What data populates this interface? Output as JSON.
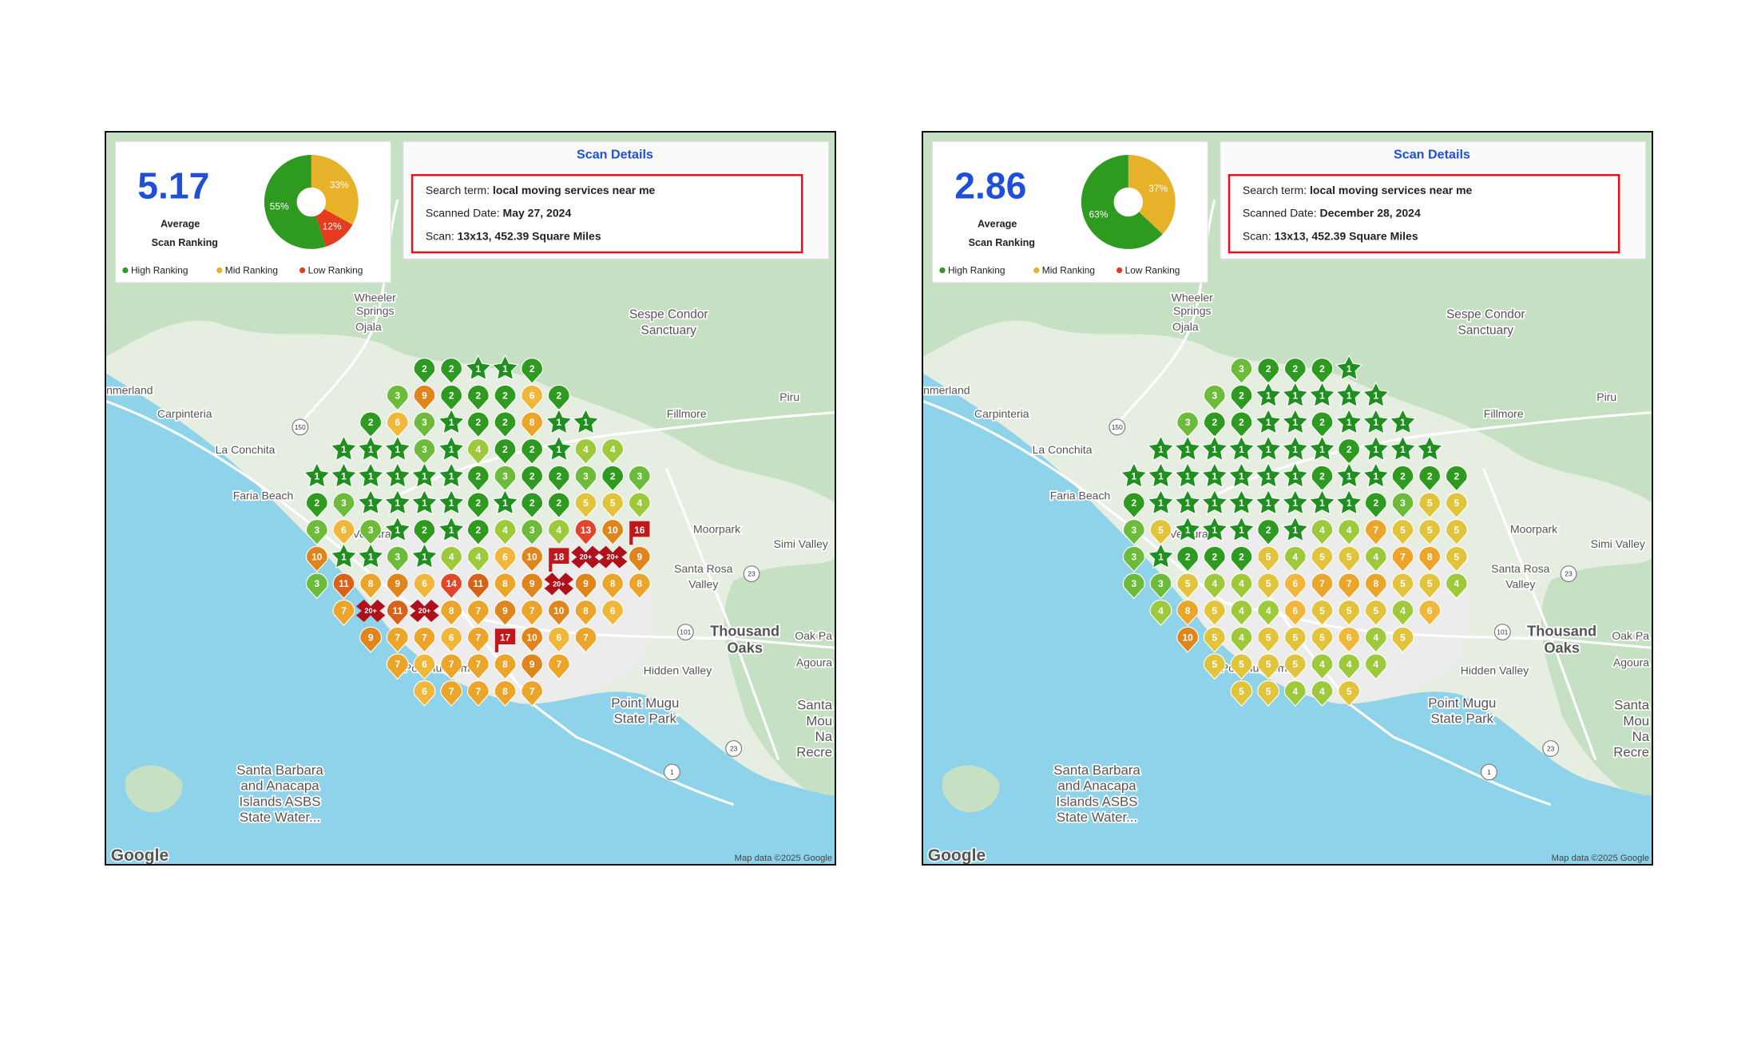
{
  "legend": [
    {
      "name": "High Ranking",
      "color": "#2e9a1f"
    },
    {
      "name": "Mid Ranking",
      "color": "#e8b12a"
    },
    {
      "name": "Low Ranking",
      "color": "#e53c1f"
    }
  ],
  "score_caption": [
    "Average",
    "Scan Ranking"
  ],
  "details_title": "Scan Details",
  "map": {
    "labels": [
      "Wheeler",
      "Springs",
      "Ojala",
      "Sespe Condor",
      "Sanctuary",
      "nmerland",
      "Carpinteria",
      "La Conchita",
      "Faria Beach",
      "Ventura",
      "Fillmore",
      "Piru",
      "Moorpark",
      "Simi Valley",
      "Santa Rosa",
      "Valley",
      "Thousand",
      "Oaks",
      "Oak Pa",
      "Agoura",
      "Hidden Valley",
      "Port Hueneme",
      "Point Mugu",
      "State Park",
      "Santa Barbara",
      "and Anacapa",
      "Islands ASBS",
      "State Water...",
      "Santa",
      "Mou",
      "Na",
      "Recre"
    ],
    "shields": [
      "150",
      "101",
      "23",
      "23",
      "1"
    ],
    "attribution": "Map data ©2025 Google",
    "logo": "Google"
  },
  "panels": [
    {
      "score": 5.17,
      "pie": {
        "values": [
          33,
          12,
          55
        ],
        "value_labels": [
          "33%",
          "12%",
          "55%"
        ],
        "colors": [
          "#e8b12a",
          "#e53c1f",
          "#2e9a1f"
        ]
      },
      "details": [
        {
          "label": "Search term:",
          "value": "local moving services near me"
        },
        {
          "label": "Scanned Date:",
          "value": "May 27, 2024"
        },
        {
          "label": "Scan:",
          "value": "13x13, 452.39 Square Miles"
        }
      ],
      "grid": [
        [
          null,
          null,
          null,
          null,
          2,
          2,
          1,
          1,
          2,
          null,
          null,
          null,
          null
        ],
        [
          null,
          null,
          null,
          3,
          9,
          2,
          2,
          2,
          6,
          2,
          null,
          null,
          null
        ],
        [
          null,
          null,
          2,
          6,
          3,
          1,
          2,
          2,
          8,
          1,
          1,
          null,
          null
        ],
        [
          null,
          1,
          1,
          1,
          3,
          1,
          4,
          2,
          2,
          1,
          4,
          4,
          null
        ],
        [
          1,
          1,
          1,
          1,
          1,
          1,
          2,
          3,
          2,
          2,
          3,
          2,
          3
        ],
        [
          2,
          3,
          1,
          1,
          1,
          1,
          2,
          1,
          2,
          2,
          5,
          5,
          4
        ],
        [
          3,
          6,
          3,
          1,
          2,
          1,
          2,
          4,
          3,
          4,
          13,
          10,
          16
        ],
        [
          10,
          1,
          1,
          3,
          1,
          4,
          4,
          6,
          10,
          18,
          "20+",
          "20+",
          9
        ],
        [
          3,
          11,
          8,
          9,
          6,
          14,
          11,
          8,
          9,
          "20+",
          9,
          8,
          8
        ],
        [
          null,
          7,
          "20+",
          11,
          "20+",
          8,
          7,
          9,
          7,
          10,
          8,
          6,
          null
        ],
        [
          null,
          null,
          9,
          7,
          7,
          6,
          7,
          17,
          10,
          6,
          7,
          null,
          null
        ],
        [
          null,
          null,
          null,
          7,
          6,
          7,
          7,
          8,
          9,
          7,
          null,
          null,
          null
        ],
        [
          null,
          null,
          null,
          null,
          6,
          7,
          7,
          8,
          7,
          null,
          null,
          null,
          null
        ]
      ]
    },
    {
      "score": 2.86,
      "pie": {
        "values": [
          37,
          63
        ],
        "value_labels": [
          "37%",
          "63%"
        ],
        "colors": [
          "#e8b12a",
          "#2e9a1f"
        ]
      },
      "details": [
        {
          "label": "Search term:",
          "value": "local moving services near me"
        },
        {
          "label": "Scanned Date:",
          "value": "December 28, 2024"
        },
        {
          "label": "Scan:",
          "value": "13x13, 452.39 Square Miles"
        }
      ],
      "grid": [
        [
          null,
          null,
          null,
          null,
          3,
          2,
          2,
          2,
          1,
          null,
          null,
          null,
          null
        ],
        [
          null,
          null,
          null,
          3,
          2,
          1,
          1,
          1,
          1,
          1,
          null,
          null,
          null
        ],
        [
          null,
          null,
          3,
          2,
          2,
          1,
          1,
          2,
          1,
          1,
          1,
          null,
          null
        ],
        [
          null,
          1,
          1,
          1,
          1,
          1,
          1,
          1,
          2,
          1,
          1,
          1,
          null
        ],
        [
          1,
          1,
          1,
          1,
          1,
          1,
          1,
          2,
          1,
          1,
          2,
          2,
          2
        ],
        [
          2,
          1,
          1,
          1,
          1,
          1,
          1,
          1,
          1,
          2,
          3,
          5,
          5
        ],
        [
          3,
          5,
          1,
          1,
          1,
          2,
          1,
          4,
          4,
          7,
          5,
          5,
          5
        ],
        [
          3,
          1,
          2,
          2,
          2,
          5,
          4,
          5,
          5,
          4,
          7,
          8,
          5
        ],
        [
          3,
          3,
          5,
          4,
          4,
          5,
          6,
          7,
          7,
          8,
          5,
          5,
          4
        ],
        [
          null,
          4,
          8,
          5,
          4,
          4,
          6,
          5,
          5,
          5,
          4,
          6,
          null
        ],
        [
          null,
          null,
          10,
          5,
          4,
          5,
          5,
          5,
          6,
          4,
          5,
          null,
          null
        ],
        [
          null,
          null,
          null,
          5,
          5,
          5,
          5,
          4,
          4,
          4,
          null,
          null,
          null
        ],
        [
          null,
          null,
          null,
          null,
          5,
          5,
          4,
          4,
          5,
          null,
          null,
          null,
          null
        ]
      ]
    }
  ]
}
